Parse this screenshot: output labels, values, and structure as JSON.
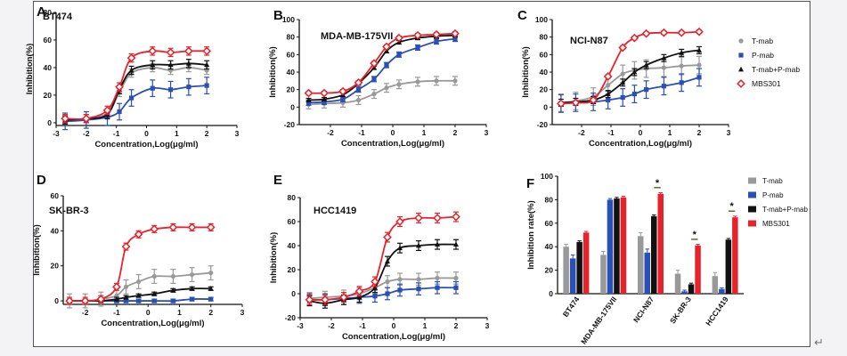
{
  "figure_label_arrow": "↵",
  "legend": {
    "entries": [
      {
        "key": "tmab",
        "label": "T-mab",
        "color": "#999999",
        "marker": "circle"
      },
      {
        "key": "pmab",
        "label": "P-mab",
        "color": "#2a4fb5",
        "marker": "square"
      },
      {
        "key": "combo",
        "label": "T-mab+P-mab",
        "color": "#111111",
        "marker": "triangle"
      },
      {
        "key": "mbs",
        "label": "MBS301",
        "color": "#e8222a",
        "marker": "diamond-open"
      }
    ]
  },
  "chart_data": [
    {
      "panel": "A",
      "type": "line",
      "title": "BT474",
      "xlabel": "Concentration,Log(μg/ml)",
      "ylabel": "Inhibition(%)",
      "xlim": [
        -3,
        3
      ],
      "ylim": [
        -2,
        80
      ],
      "xticks": [
        -3,
        -2,
        -1,
        0,
        1,
        2,
        3
      ],
      "yticks": [
        0,
        20,
        40,
        60,
        80
      ],
      "x": [
        -2.7,
        -2,
        -1.3,
        -0.9,
        -0.5,
        0.2,
        0.8,
        1.4,
        2
      ],
      "series": [
        {
          "key": "tmab",
          "name": "T-mab",
          "values": [
            2,
            3,
            7,
            22,
            36,
            40,
            38,
            40,
            38
          ],
          "err": 3
        },
        {
          "key": "pmab",
          "name": "P-mab",
          "values": [
            1,
            2,
            4,
            8,
            18,
            25,
            24,
            26,
            27
          ],
          "err": 6
        },
        {
          "key": "combo",
          "name": "T-mab+P-mab",
          "values": [
            2,
            3,
            6,
            24,
            38,
            42,
            42,
            43,
            42
          ],
          "err": 3
        },
        {
          "key": "mbs",
          "name": "MBS301",
          "values": [
            3,
            3,
            9,
            26,
            47,
            52,
            51,
            52,
            52
          ],
          "err": 3
        }
      ]
    },
    {
      "panel": "B",
      "type": "line",
      "title": "MDA-MB-175VII",
      "xlabel": "Concentration,Log(μg/ml)",
      "ylabel": "Inhibition(%)",
      "xlim": [
        -3,
        3
      ],
      "ylim": [
        -20,
        100
      ],
      "xticks": [
        -2,
        -1,
        0,
        1,
        2,
        3
      ],
      "yticks": [
        -20,
        0,
        20,
        40,
        60,
        80,
        100
      ],
      "x": [
        -2.7,
        -2.2,
        -1.6,
        -1.1,
        -0.6,
        -0.2,
        0.2,
        0.8,
        1.4,
        2
      ],
      "series": [
        {
          "key": "tmab",
          "name": "T-mab",
          "values": [
            3,
            4,
            5,
            8,
            15,
            22,
            26,
            29,
            30,
            30
          ],
          "err": 5
        },
        {
          "key": "pmab",
          "name": "P-mab",
          "values": [
            5,
            6,
            9,
            20,
            32,
            48,
            60,
            68,
            75,
            78
          ],
          "err": 3
        },
        {
          "key": "combo",
          "name": "T-mab+P-mab",
          "values": [
            8,
            9,
            14,
            27,
            45,
            64,
            74,
            79,
            81,
            82
          ],
          "err": 2
        },
        {
          "key": "mbs",
          "name": "MBS301",
          "values": [
            16,
            16,
            18,
            28,
            50,
            69,
            79,
            82,
            83,
            84
          ],
          "err": 2
        }
      ]
    },
    {
      "panel": "C",
      "type": "line",
      "title": "NCI-N87",
      "xlabel": "Concentration,Log(μg/ml)",
      "ylabel": "Inhibition(%)",
      "xlim": [
        -3,
        3
      ],
      "ylim": [
        -20,
        100
      ],
      "xticks": [
        -2,
        -1,
        0,
        1,
        2,
        3
      ],
      "yticks": [
        -20,
        0,
        20,
        40,
        60,
        80,
        100
      ],
      "x": [
        -2.7,
        -2.2,
        -1.6,
        -1.1,
        -0.6,
        -0.2,
        0.2,
        0.8,
        1.4,
        2
      ],
      "series": [
        {
          "key": "tmab",
          "name": "T-mab",
          "values": [
            5,
            7,
            12,
            25,
            38,
            42,
            44,
            45,
            47,
            48
          ],
          "err": 10
        },
        {
          "key": "pmab",
          "name": "P-mab",
          "values": [
            4,
            5,
            6,
            8,
            11,
            15,
            20,
            24,
            28,
            34
          ],
          "err": 10
        },
        {
          "key": "combo",
          "name": "T-mab+P-mab",
          "values": [
            5,
            6,
            8,
            15,
            28,
            40,
            48,
            56,
            62,
            65
          ],
          "err": 4
        },
        {
          "key": "mbs",
          "name": "MBS301",
          "values": [
            4,
            5,
            8,
            35,
            68,
            79,
            84,
            85,
            85,
            86
          ],
          "err": 2
        }
      ]
    },
    {
      "panel": "D",
      "type": "line",
      "title": "SK-BR-3",
      "xlabel": "Concentration,Log(μg/ml)",
      "ylabel": "Inhibition(%)",
      "xlim": [
        -2.7,
        3
      ],
      "ylim": [
        -2,
        60
      ],
      "xticks": [
        -2,
        -1,
        0,
        1,
        2,
        3
      ],
      "yticks": [
        0,
        20,
        40,
        60
      ],
      "x": [
        -2.5,
        -2,
        -1.5,
        -1,
        -0.7,
        -0.3,
        0.2,
        0.8,
        1.4,
        2
      ],
      "series": [
        {
          "key": "tmab",
          "name": "T-mab",
          "values": [
            0,
            0,
            1,
            3,
            8,
            11,
            14,
            14,
            15,
            16
          ],
          "err": 4
        },
        {
          "key": "pmab",
          "name": "P-mab",
          "values": [
            0,
            0,
            0,
            0,
            0,
            0,
            0,
            0,
            1,
            1
          ],
          "err": 1
        },
        {
          "key": "combo",
          "name": "T-mab+P-mab",
          "values": [
            0,
            0,
            0,
            1,
            2,
            3,
            4,
            6,
            7,
            7
          ],
          "err": 1
        },
        {
          "key": "mbs",
          "name": "MBS301",
          "values": [
            0,
            0,
            1,
            8,
            31,
            38,
            41,
            42,
            42,
            42
          ],
          "err": 2
        }
      ]
    },
    {
      "panel": "E",
      "type": "line",
      "title": "HCC1419",
      "xlabel": "Concentration,Log(μg/ml)",
      "ylabel": "Inhibition(%)",
      "xlim": [
        -3,
        3
      ],
      "ylim": [
        -20,
        80
      ],
      "xticks": [
        -3,
        -2,
        -1,
        0,
        1,
        2,
        3
      ],
      "yticks": [
        -20,
        0,
        20,
        40,
        60,
        80
      ],
      "x": [
        -2.7,
        -2.2,
        -1.6,
        -1.1,
        -0.6,
        -0.2,
        0.2,
        0.8,
        1.4,
        2
      ],
      "series": [
        {
          "key": "tmab",
          "name": "T-mab",
          "values": [
            -4,
            -3,
            -2,
            0,
            5,
            10,
            12,
            12,
            13,
            13
          ],
          "err": 5
        },
        {
          "key": "pmab",
          "name": "P-mab",
          "values": [
            -5,
            -5,
            -4,
            -3,
            -2,
            0,
            3,
            4,
            5,
            5
          ],
          "err": 5
        },
        {
          "key": "combo",
          "name": "T-mab+P-mab",
          "values": [
            -6,
            -8,
            -5,
            -3,
            5,
            27,
            38,
            40,
            41,
            41
          ],
          "err": 4
        },
        {
          "key": "mbs",
          "name": "MBS301",
          "values": [
            -5,
            -5,
            -3,
            2,
            10,
            47,
            60,
            63,
            63,
            64
          ],
          "err": 4
        }
      ]
    },
    {
      "panel": "F",
      "type": "bar",
      "xlabel": "",
      "ylabel": "Inhibition rate(%)",
      "ylim": [
        0,
        100
      ],
      "yticks": [
        0,
        20,
        40,
        60,
        80,
        100
      ],
      "categories": [
        "BT474",
        "MDA-MB-175VII",
        "NCI-N87",
        "SK-BR-3",
        "HCC1419"
      ],
      "series": [
        {
          "key": "tmab",
          "name": "T-mab",
          "values": [
            40,
            33,
            49,
            17,
            15
          ],
          "err": [
            2,
            3,
            3,
            3,
            3
          ]
        },
        {
          "key": "pmab",
          "name": "P-mab",
          "values": [
            30,
            80,
            35,
            2,
            4
          ],
          "err": [
            3,
            1,
            3,
            1,
            1
          ]
        },
        {
          "key": "combo",
          "name": "T-mab+P-mab",
          "values": [
            44,
            81,
            66,
            8,
            46
          ],
          "err": [
            1,
            1,
            1,
            1,
            1
          ]
        },
        {
          "key": "mbs",
          "name": "MBS301",
          "values": [
            52,
            82,
            85,
            41,
            65
          ],
          "err": [
            1,
            1,
            1,
            1,
            1
          ]
        }
      ],
      "significance": [
        {
          "category": "NCI-N87",
          "label": "*"
        },
        {
          "category": "SK-BR-3",
          "label": "*"
        },
        {
          "category": "HCC1419",
          "label": "*"
        }
      ]
    }
  ]
}
